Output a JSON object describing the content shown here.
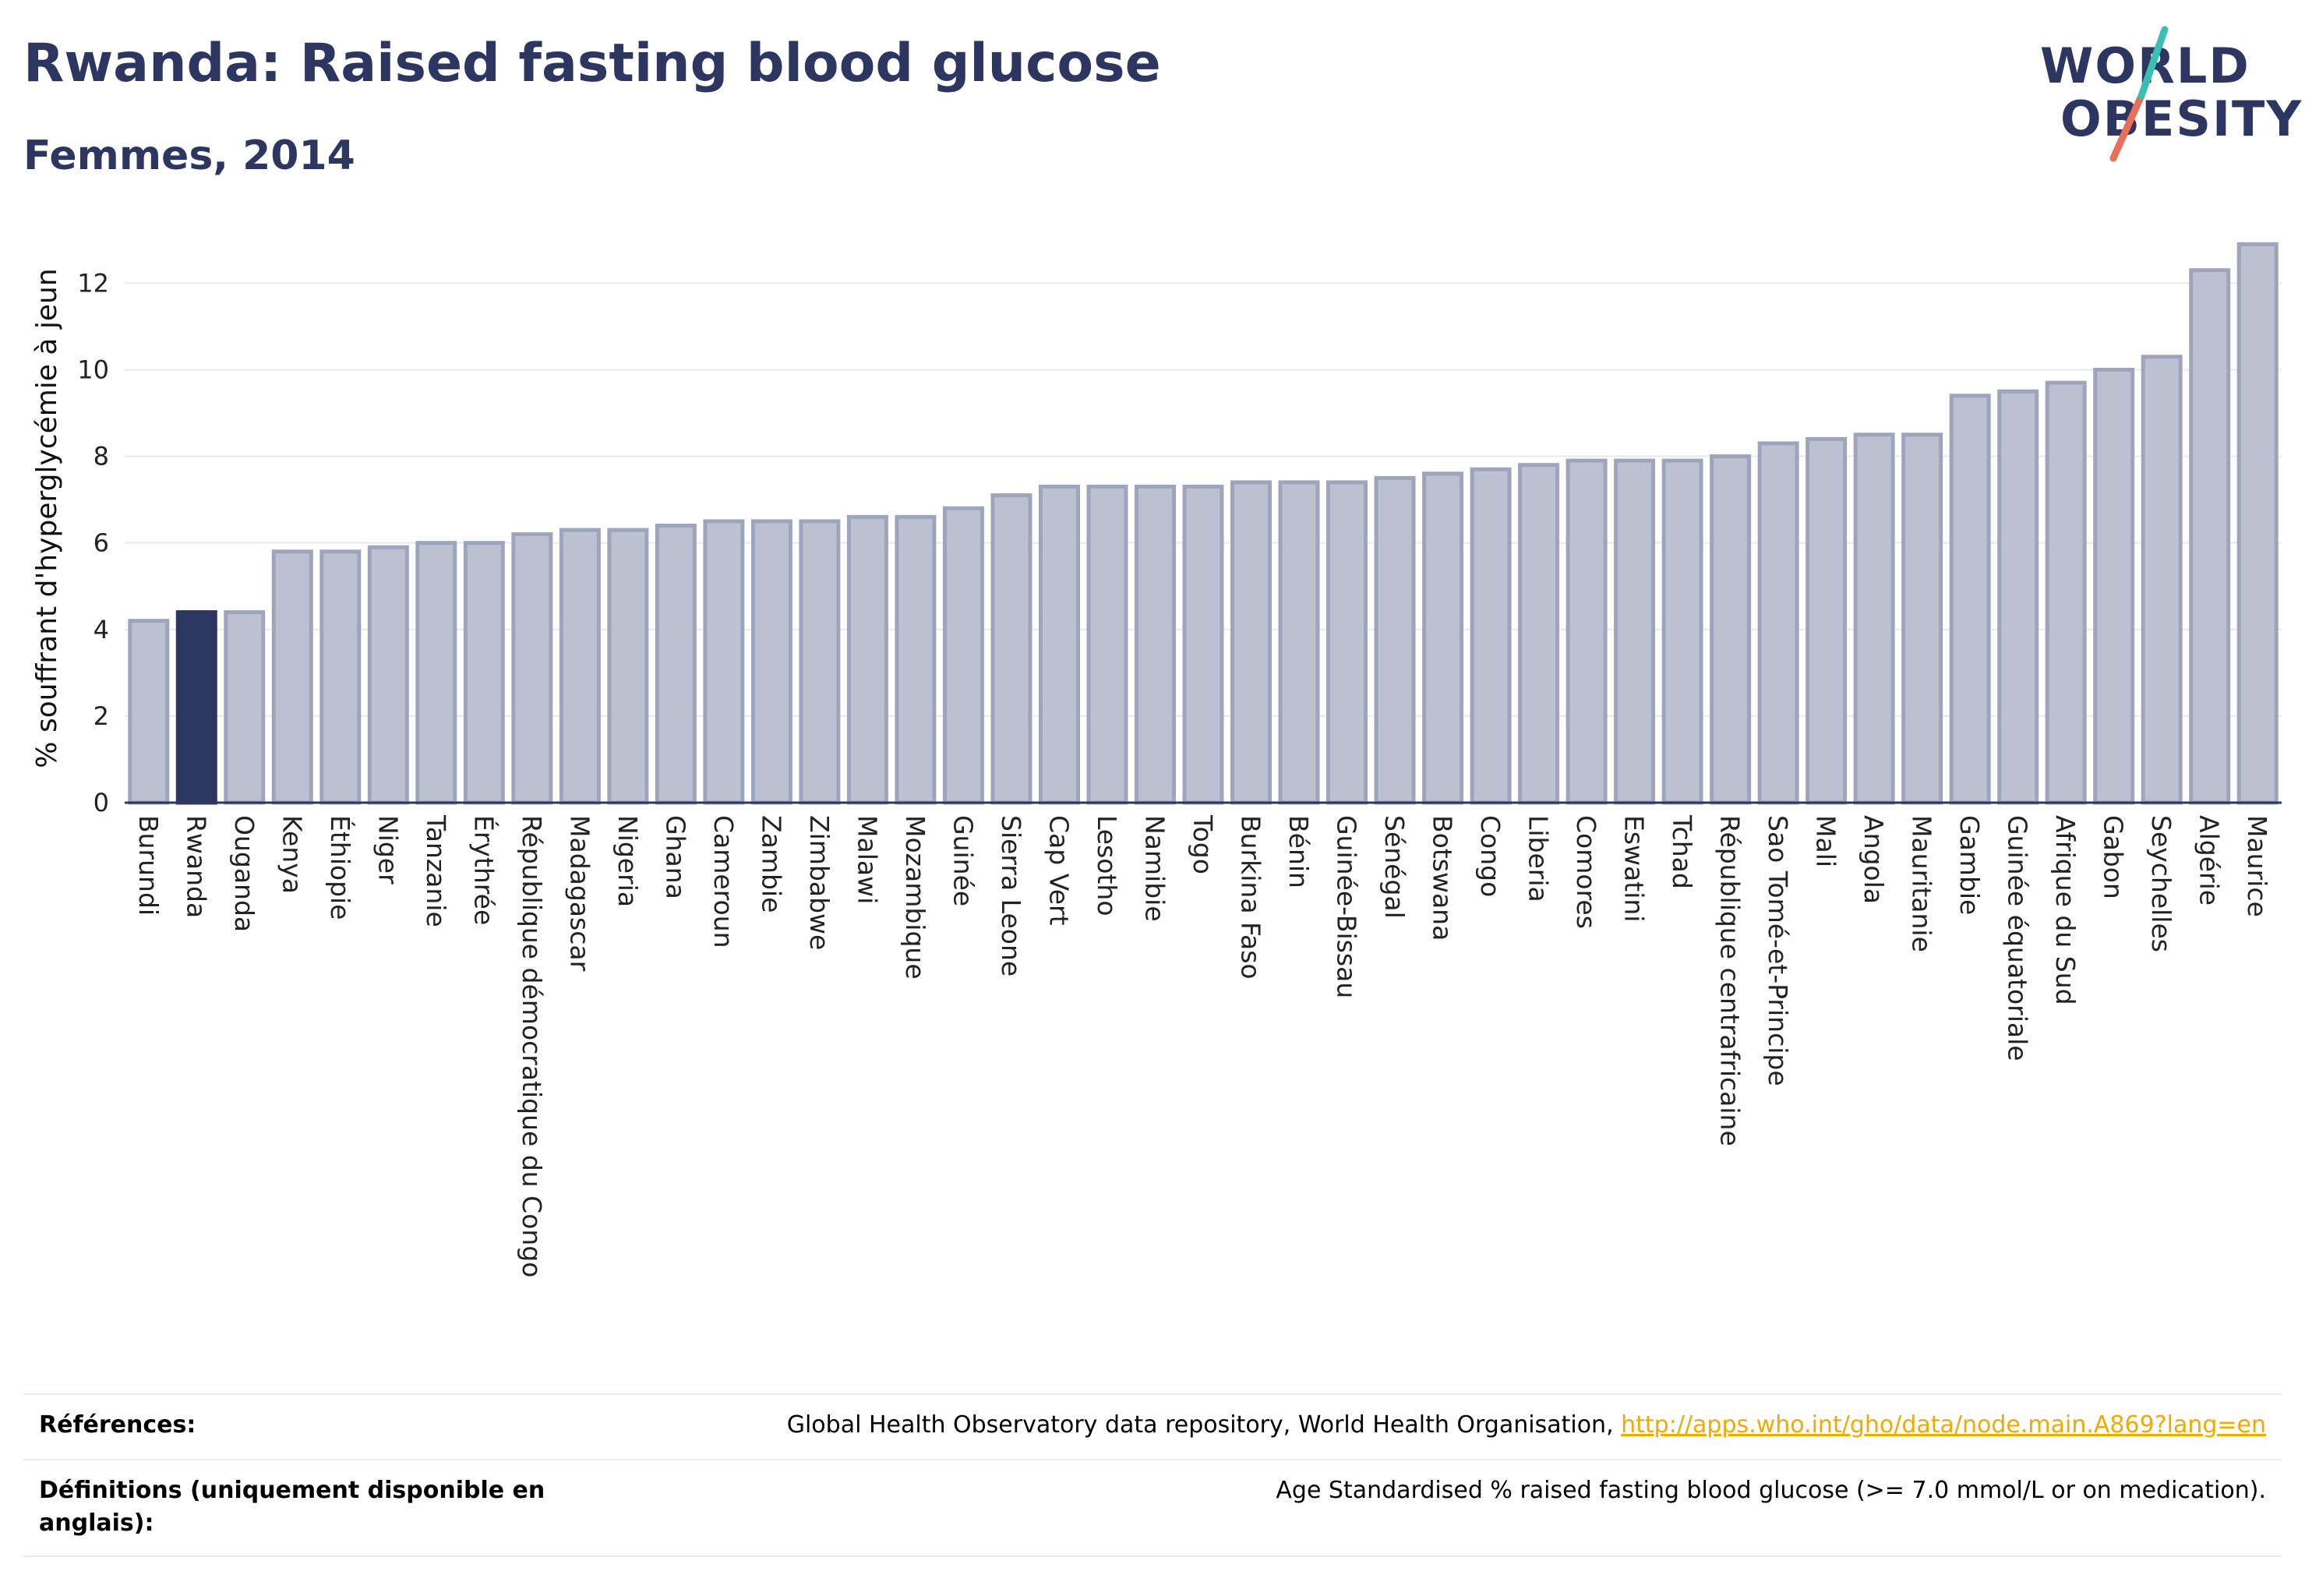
{
  "header": {
    "title": "Rwanda: Raised fasting blood glucose",
    "subtitle": "Femmes, 2014"
  },
  "logo": {
    "line1": "WORLD",
    "line2": "OBESITY"
  },
  "colors": {
    "highlight": "#2d3561",
    "bar_fill": "#bcc1d1",
    "bar_stroke": "#9ea4bb",
    "grid": "#e6e9f0",
    "link": "#f2a900"
  },
  "chart_data": {
    "type": "bar",
    "ylabel": "% souffrant d'hyperglycémie à jeun",
    "ylim": [
      0,
      13.5
    ],
    "yticks": [
      0,
      2,
      4,
      6,
      8,
      10,
      12
    ],
    "grid": true,
    "highlight": "Rwanda",
    "categories": [
      "Burundi",
      "Rwanda",
      "Ouganda",
      "Kenya",
      "Éthiopie",
      "Niger",
      "Tanzanie",
      "Érythrée",
      "République démocratique du Congo",
      "Madagascar",
      "Nigeria",
      "Ghana",
      "Cameroun",
      "Zambie",
      "Zimbabwe",
      "Malawi",
      "Mozambique",
      "Guinée",
      "Sierra Leone",
      "Cap Vert",
      "Lesotho",
      "Namibie",
      "Togo",
      "Burkina Faso",
      "Bénin",
      "Guinée-Bissau",
      "Sénégal",
      "Botswana",
      "Congo",
      "Liberia",
      "Comores",
      "Eswatini",
      "Tchad",
      "République centrafricaine",
      "Sao Tomé-et-Principe",
      "Mali",
      "Angola",
      "Mauritanie",
      "Gambie",
      "Guinée équatoriale",
      "Afrique du Sud",
      "Gabon",
      "Seychelles",
      "Algérie",
      "Maurice"
    ],
    "values": [
      4.2,
      4.4,
      4.4,
      5.8,
      5.8,
      5.9,
      6.0,
      6.0,
      6.2,
      6.3,
      6.3,
      6.4,
      6.5,
      6.5,
      6.5,
      6.6,
      6.6,
      6.8,
      7.1,
      7.3,
      7.3,
      7.3,
      7.3,
      7.4,
      7.4,
      7.4,
      7.5,
      7.6,
      7.7,
      7.8,
      7.9,
      7.9,
      7.9,
      8.0,
      8.3,
      8.4,
      8.5,
      8.5,
      9.4,
      9.5,
      9.7,
      10.0,
      10.3,
      12.3,
      12.9
    ]
  },
  "footer": {
    "references_label": "Références:",
    "references_text": "Global Health Observatory data repository, World Health Organisation, ",
    "references_link": "http://apps.who.int/gho/data/node.main.A869?lang=en",
    "definitions_label": "Définitions (uniquement disponible en anglais):",
    "definitions_text": "Age Standardised % raised fasting blood glucose (>= 7.0 mmol/L or on medication)."
  }
}
